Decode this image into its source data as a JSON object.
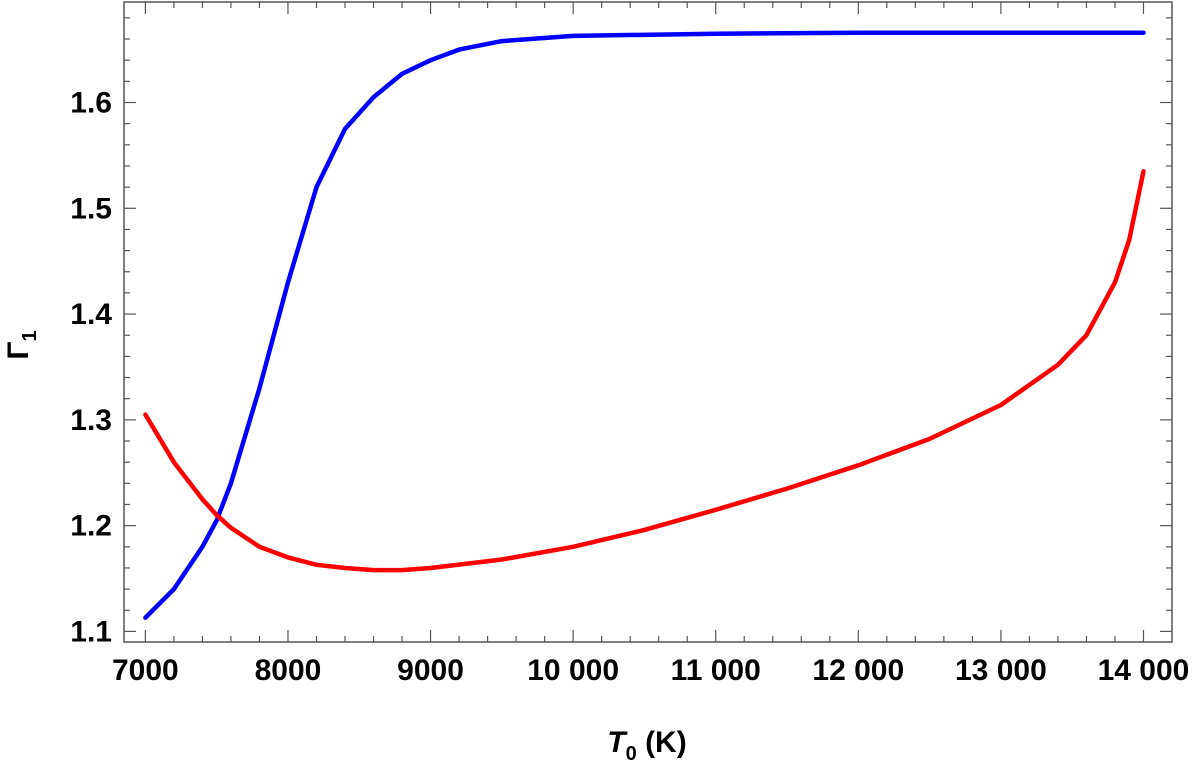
{
  "chart_data": {
    "type": "line",
    "xlabel": {
      "main": "T",
      "sub": "0",
      "unit": " (K)"
    },
    "ylabel": {
      "main": "Γ",
      "sub": "1"
    },
    "xlim": [
      6850,
      14200
    ],
    "ylim": [
      1.09,
      1.695
    ],
    "x_ticks": [
      7000,
      8000,
      9000,
      10000,
      11000,
      12000,
      13000,
      14000
    ],
    "x_tick_labels": [
      "7000",
      "8000",
      "9000",
      "10 000",
      "11 000",
      "12 000",
      "13 000",
      "14 000"
    ],
    "y_ticks": [
      1.1,
      1.2,
      1.3,
      1.4,
      1.5,
      1.6
    ],
    "y_tick_labels": [
      "1.1",
      "1.2",
      "1.3",
      "1.4",
      "1.5",
      "1.6"
    ],
    "grid": false,
    "series": [
      {
        "color": "#0000ff",
        "x": [
          7000,
          7200,
          7400,
          7500,
          7600,
          7800,
          8000,
          8200,
          8400,
          8600,
          8800,
          9000,
          9200,
          9500,
          10000,
          11000,
          12000,
          13000,
          14000
        ],
        "y": [
          1.113,
          1.14,
          1.18,
          1.205,
          1.24,
          1.33,
          1.43,
          1.52,
          1.575,
          1.605,
          1.627,
          1.64,
          1.65,
          1.658,
          1.663,
          1.665,
          1.666,
          1.666,
          1.666
        ]
      },
      {
        "color": "#ff0000",
        "x": [
          7000,
          7200,
          7400,
          7500,
          7600,
          7800,
          8000,
          8200,
          8400,
          8600,
          8800,
          9000,
          9500,
          10000,
          10500,
          11000,
          11500,
          12000,
          12500,
          13000,
          13400,
          13600,
          13800,
          13900,
          14000
        ],
        "y": [
          1.305,
          1.26,
          1.225,
          1.21,
          1.198,
          1.18,
          1.17,
          1.163,
          1.16,
          1.158,
          1.158,
          1.16,
          1.168,
          1.18,
          1.196,
          1.215,
          1.235,
          1.257,
          1.282,
          1.314,
          1.352,
          1.38,
          1.43,
          1.47,
          1.535
        ]
      }
    ]
  }
}
